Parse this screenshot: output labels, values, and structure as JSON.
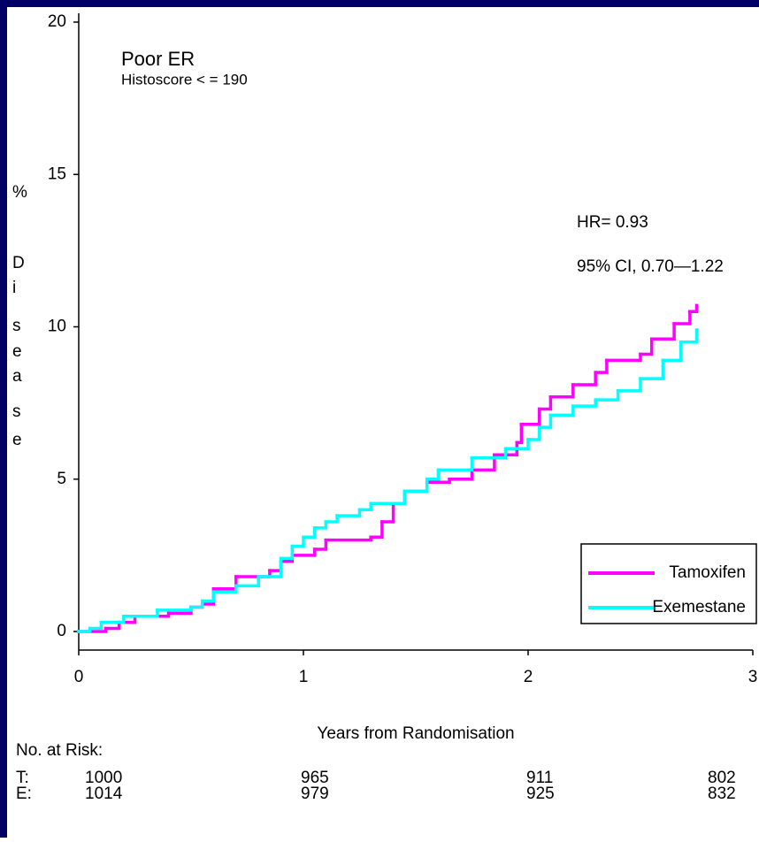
{
  "chart_data": {
    "type": "step",
    "title": "Poor ER",
    "subtitle": "Histoscore < = 190",
    "annotations": [
      "HR= 0.93",
      "95% CI, 0.70—1.22"
    ],
    "ylabel": [
      "%",
      "D",
      "i",
      "s",
      "e",
      "a",
      "s",
      "e"
    ],
    "xlabel": "Years from Randomisation",
    "xlim": [
      0,
      3
    ],
    "xticks": [
      0,
      1,
      2,
      3
    ],
    "ylim": [
      0,
      20
    ],
    "yticks": [
      0,
      5,
      10,
      15,
      20
    ],
    "legend": "lower right",
    "series": [
      {
        "name": "Tamoxifen",
        "color": "#ff00ff",
        "x": [
          0,
          0.05,
          0.12,
          0.18,
          0.25,
          0.4,
          0.5,
          0.55,
          0.6,
          0.7,
          0.8,
          0.85,
          0.9,
          0.95,
          1.05,
          1.1,
          1.3,
          1.35,
          1.4,
          1.45,
          1.55,
          1.65,
          1.75,
          1.85,
          1.95,
          1.97,
          2.05,
          2.1,
          2.2,
          2.3,
          2.35,
          2.5,
          2.55,
          2.65,
          2.72,
          2.75
        ],
        "values": [
          0,
          0,
          0.1,
          0.3,
          0.5,
          0.6,
          0.8,
          0.9,
          1.4,
          1.8,
          1.8,
          2.0,
          2.3,
          2.5,
          2.7,
          3.0,
          3.1,
          3.6,
          4.2,
          4.6,
          4.9,
          5.0,
          5.3,
          5.8,
          6.2,
          6.8,
          7.3,
          7.7,
          8.1,
          8.5,
          8.9,
          9.1,
          9.6,
          10.1,
          10.5,
          10.7
        ]
      },
      {
        "name": "Exemestane",
        "color": "#00ffff",
        "x": [
          0,
          0.05,
          0.1,
          0.2,
          0.35,
          0.5,
          0.55,
          0.6,
          0.7,
          0.8,
          0.9,
          0.95,
          1.0,
          1.05,
          1.1,
          1.15,
          1.25,
          1.3,
          1.45,
          1.55,
          1.6,
          1.75,
          1.9,
          2.0,
          2.05,
          2.1,
          2.2,
          2.3,
          2.4,
          2.5,
          2.6,
          2.68,
          2.75
        ],
        "values": [
          0,
          0.1,
          0.3,
          0.5,
          0.7,
          0.8,
          1.0,
          1.3,
          1.5,
          1.8,
          2.4,
          2.8,
          3.1,
          3.4,
          3.6,
          3.8,
          4.0,
          4.2,
          4.6,
          5.0,
          5.3,
          5.7,
          6.0,
          6.3,
          6.7,
          7.1,
          7.4,
          7.6,
          7.9,
          8.3,
          8.9,
          9.5,
          9.9
        ]
      }
    ],
    "risk_table": {
      "title": "No. at Risk:",
      "rows": [
        {
          "label": "T:",
          "values": [
            1000,
            965,
            911,
            802
          ]
        },
        {
          "label": "E:",
          "values": [
            1014,
            979,
            925,
            832
          ]
        }
      ]
    }
  }
}
